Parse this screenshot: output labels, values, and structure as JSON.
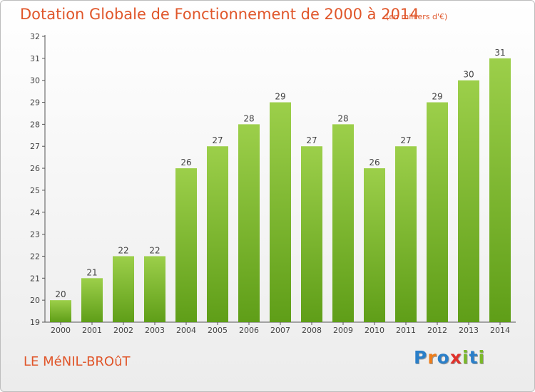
{
  "chart_data": {
    "type": "bar",
    "title": "Dotation Globale de Fonctionnement de 2000 à 2014",
    "subtitle": "(en milliers d'€)",
    "xlabel": "",
    "ylabel": "",
    "categories": [
      "2000",
      "2001",
      "2002",
      "2003",
      "2004",
      "2005",
      "2006",
      "2007",
      "2008",
      "2009",
      "2010",
      "2011",
      "2012",
      "2013",
      "2014"
    ],
    "values": [
      20,
      21,
      22,
      22,
      26,
      27,
      28,
      29,
      27,
      28,
      26,
      27,
      29,
      30,
      31
    ],
    "ylim": [
      19,
      32
    ],
    "yticks": [
      19,
      20,
      21,
      22,
      23,
      24,
      25,
      26,
      27,
      28,
      29,
      30,
      31,
      32
    ],
    "grid": false,
    "bar_color_top": "#9ccf4a",
    "bar_color_bottom": "#5f9e18"
  },
  "footer": {
    "commune": "LE MéNIL-BROûT",
    "logo_letters": [
      {
        "ch": "P",
        "color": "#2a7fc9"
      },
      {
        "ch": "r",
        "color": "#ee7d1a"
      },
      {
        "ch": "o",
        "color": "#2a7fc9"
      },
      {
        "ch": "x",
        "color": "#e0312b"
      },
      {
        "ch": "i",
        "color": "#7ab829"
      },
      {
        "ch": "t",
        "color": "#2a7fc9"
      },
      {
        "ch": "i",
        "color": "#7ab829"
      }
    ]
  }
}
